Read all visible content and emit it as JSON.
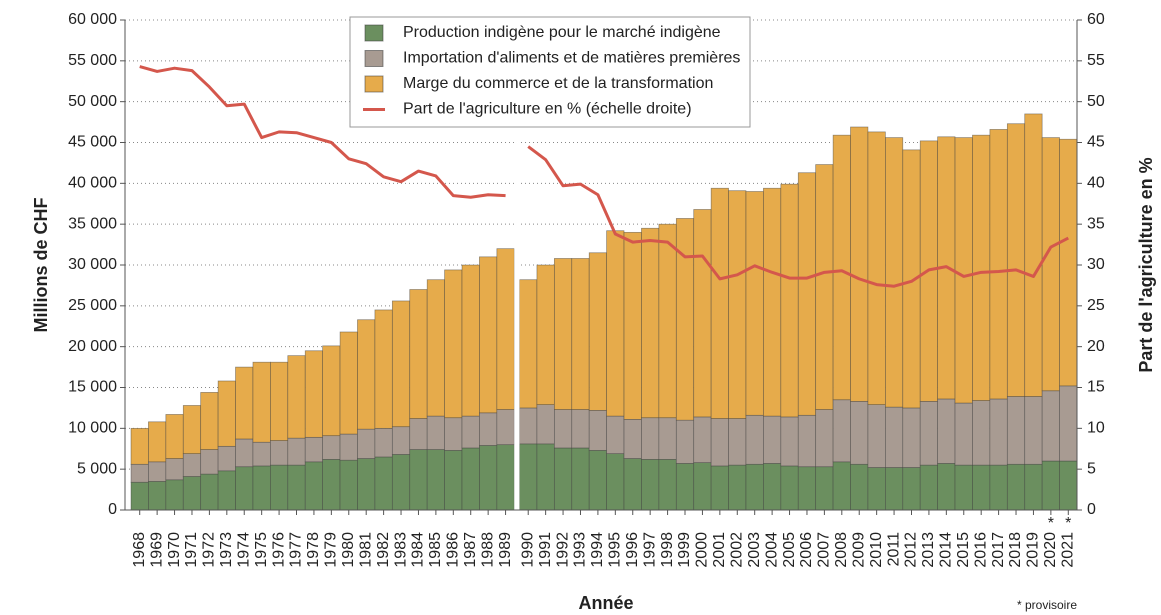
{
  "chart_data": {
    "type": "bar",
    "stacked": true,
    "ylabel": "Millions de CHF",
    "y2label": "Part de l'agriculture en %",
    "xlabel": "Année",
    "footnote": "* provisoire",
    "categories": [
      "1968",
      "1969",
      "1970",
      "1971",
      "1972",
      "1973",
      "1974",
      "1975",
      "1976",
      "1977",
      "1978",
      "1979",
      "1980",
      "1981",
      "1982",
      "1983",
      "1984",
      "1985",
      "1986",
      "1987",
      "1988",
      "1989",
      null,
      "1990",
      "1991",
      "1992",
      "1993",
      "1994",
      "1995",
      "1996",
      "1997",
      "1998",
      "1999",
      "2000",
      "2001",
      "2002",
      "2003",
      "2004",
      "2005",
      "2006",
      "2007",
      "2008",
      "2009",
      "2010",
      "2011",
      "2012",
      "2013",
      "2014",
      "2015",
      "2016",
      "2017",
      "2018",
      "2019",
      "2020",
      "2021"
    ],
    "category_notes": [
      null,
      null,
      null,
      null,
      null,
      null,
      null,
      null,
      null,
      null,
      null,
      null,
      null,
      null,
      null,
      null,
      null,
      null,
      null,
      null,
      null,
      null,
      null,
      null,
      null,
      null,
      null,
      null,
      null,
      null,
      null,
      null,
      null,
      null,
      null,
      null,
      null,
      null,
      null,
      null,
      null,
      null,
      null,
      null,
      null,
      null,
      null,
      null,
      null,
      null,
      null,
      null,
      null,
      "*",
      "*"
    ],
    "series": [
      {
        "name": "Production indigène pour le marché indigène",
        "color": "#6b8f5f",
        "values": [
          3400,
          3500,
          3700,
          4100,
          4400,
          4800,
          5300,
          5400,
          5500,
          5500,
          5900,
          6200,
          6100,
          6300,
          6500,
          6800,
          7400,
          7400,
          7300,
          7600,
          7900,
          8000,
          null,
          8100,
          8100,
          7600,
          7600,
          7300,
          6900,
          6300,
          6200,
          6200,
          5700,
          5800,
          5400,
          5500,
          5600,
          5700,
          5400,
          5300,
          5300,
          5900,
          5600,
          5200,
          5200,
          5200,
          5500,
          5700,
          5500,
          5500,
          5500,
          5600,
          5600,
          6000,
          6000
        ]
      },
      {
        "name": "Importation d'aliments et de matières premières",
        "color": "#a89b92",
        "values": [
          2200,
          2400,
          2600,
          2800,
          3000,
          3000,
          3400,
          2900,
          3000,
          3300,
          3000,
          2900,
          3200,
          3600,
          3500,
          3400,
          3800,
          4100,
          4000,
          3900,
          4000,
          4300,
          null,
          4400,
          4800,
          4700,
          4700,
          4900,
          4600,
          4800,
          5100,
          5100,
          5300,
          5600,
          5800,
          5700,
          6000,
          5800,
          6000,
          6300,
          7000,
          7600,
          7700,
          7700,
          7400,
          7300,
          7800,
          7900,
          7600,
          7900,
          8100,
          8300,
          8300,
          8600,
          9200
        ]
      },
      {
        "name": "Marge du commerce et de la transformation",
        "color": "#e6ab4b",
        "values": [
          4400,
          4900,
          5400,
          5900,
          7000,
          8000,
          8800,
          9800,
          9600,
          10100,
          10600,
          11000,
          12500,
          13400,
          14500,
          15400,
          15800,
          16700,
          18100,
          18500,
          19100,
          19700,
          null,
          15700,
          17100,
          18500,
          18500,
          19300,
          22700,
          22900,
          23200,
          23700,
          24700,
          25400,
          28200,
          27900,
          27400,
          27900,
          28500,
          29700,
          30000,
          32400,
          33600,
          33400,
          33000,
          31600,
          31900,
          32100,
          32500,
          32500,
          33000,
          33400,
          34600,
          31000,
          30200
        ]
      },
      {
        "name": "Part de l'agriculture en % (échelle droite)",
        "color": "#d4574c",
        "type": "line",
        "axis": "y2",
        "values": [
          54.3,
          53.7,
          54.1,
          53.8,
          51.8,
          49.5,
          49.7,
          45.6,
          46.3,
          46.2,
          45.6,
          45.0,
          43.0,
          42.4,
          40.8,
          40.2,
          41.5,
          40.9,
          38.5,
          38.3,
          38.6,
          38.5,
          null,
          44.5,
          42.9,
          39.7,
          39.9,
          38.6,
          33.8,
          32.8,
          33.0,
          32.8,
          31.0,
          31.1,
          28.3,
          28.8,
          29.9,
          29.1,
          28.4,
          28.4,
          29.1,
          29.3,
          28.3,
          27.6,
          27.4,
          28.0,
          29.4,
          29.8,
          28.6,
          29.1,
          29.2,
          29.4,
          28.6,
          32.2,
          33.3
        ]
      }
    ],
    "ylim": [
      0,
      60000
    ],
    "yticks": [
      0,
      {
        "value": 5000,
        "label": "5 000"
      },
      {
        "value": 10000,
        "label": "10 000"
      },
      {
        "value": 15000,
        "label": "15 000"
      },
      {
        "value": 20000,
        "label": "20 000"
      },
      {
        "value": 25000,
        "label": "25 000"
      },
      {
        "value": 30000,
        "label": "30 000"
      },
      {
        "value": 35000,
        "label": "35 000"
      },
      {
        "value": 40000,
        "label": "40 000"
      },
      {
        "value": 45000,
        "label": "45 000"
      },
      {
        "value": 50000,
        "label": "50 000"
      },
      {
        "value": 55000,
        "label": "55 000"
      },
      {
        "value": 60000,
        "label": "60 000"
      }
    ],
    "y2lim": [
      0,
      60
    ],
    "y2ticks": [
      0,
      5,
      10,
      15,
      20,
      25,
      30,
      35,
      40,
      45,
      50,
      55,
      60
    ],
    "grid": true,
    "legend": "top"
  }
}
